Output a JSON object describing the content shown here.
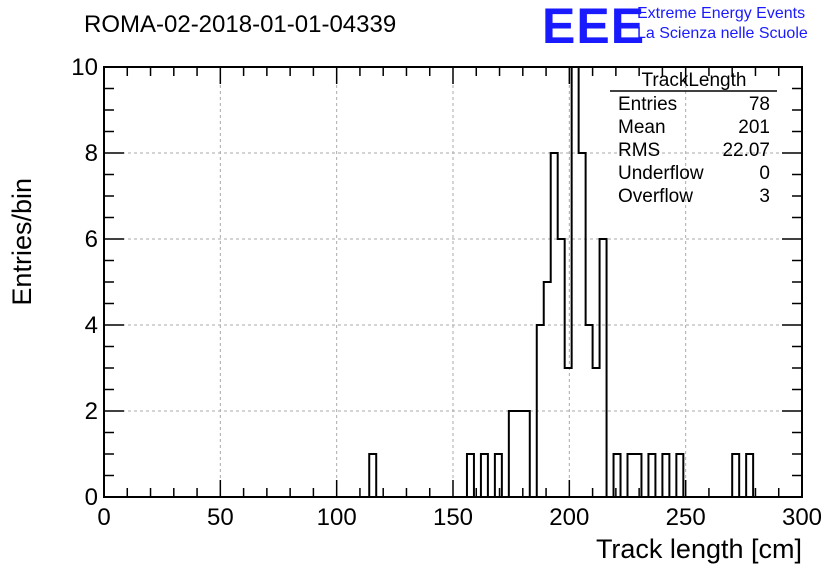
{
  "header": {
    "title": "ROMA-02-2018-01-01-04339",
    "logo_text": "EEE",
    "logo_line1": "Extreme Energy Events",
    "logo_line2": "La Scienza nelle Scuole",
    "logo_color": "#1a1aff"
  },
  "stats": {
    "title": "TrackLength",
    "rows": [
      {
        "label": "Entries",
        "value": "78"
      },
      {
        "label": "Mean",
        "value": "201"
      },
      {
        "label": "RMS",
        "value": "22.07"
      },
      {
        "label": "Underflow",
        "value": "0"
      },
      {
        "label": "Overflow",
        "value": "3"
      }
    ]
  },
  "chart_data": {
    "type": "histogram",
    "title": "ROMA-02-2018-01-01-04339",
    "xlabel": "Track length [cm]",
    "ylabel": "Entries/bin",
    "xlim": [
      0,
      300
    ],
    "ylim": [
      0,
      10
    ],
    "bin_width": 3,
    "x_ticks": [
      0,
      50,
      100,
      150,
      200,
      250,
      300
    ],
    "y_ticks": [
      0,
      2,
      4,
      6,
      8,
      10
    ],
    "grid": true,
    "line_color": "#000000",
    "bins": [
      {
        "x": 114,
        "value": 1
      },
      {
        "x": 156,
        "value": 1
      },
      {
        "x": 162,
        "value": 1
      },
      {
        "x": 168,
        "value": 1
      },
      {
        "x": 174,
        "value": 2
      },
      {
        "x": 177,
        "value": 2
      },
      {
        "x": 180,
        "value": 2
      },
      {
        "x": 186,
        "value": 4
      },
      {
        "x": 189,
        "value": 5
      },
      {
        "x": 192,
        "value": 8
      },
      {
        "x": 195,
        "value": 6
      },
      {
        "x": 198,
        "value": 3
      },
      {
        "x": 201,
        "value": 10
      },
      {
        "x": 204,
        "value": 8
      },
      {
        "x": 207,
        "value": 4
      },
      {
        "x": 210,
        "value": 3
      },
      {
        "x": 213,
        "value": 6
      },
      {
        "x": 219,
        "value": 1
      },
      {
        "x": 225,
        "value": 1
      },
      {
        "x": 228,
        "value": 1
      },
      {
        "x": 234,
        "value": 1
      },
      {
        "x": 240,
        "value": 1
      },
      {
        "x": 246,
        "value": 1
      },
      {
        "x": 270,
        "value": 1
      },
      {
        "x": 276,
        "value": 1
      }
    ]
  }
}
